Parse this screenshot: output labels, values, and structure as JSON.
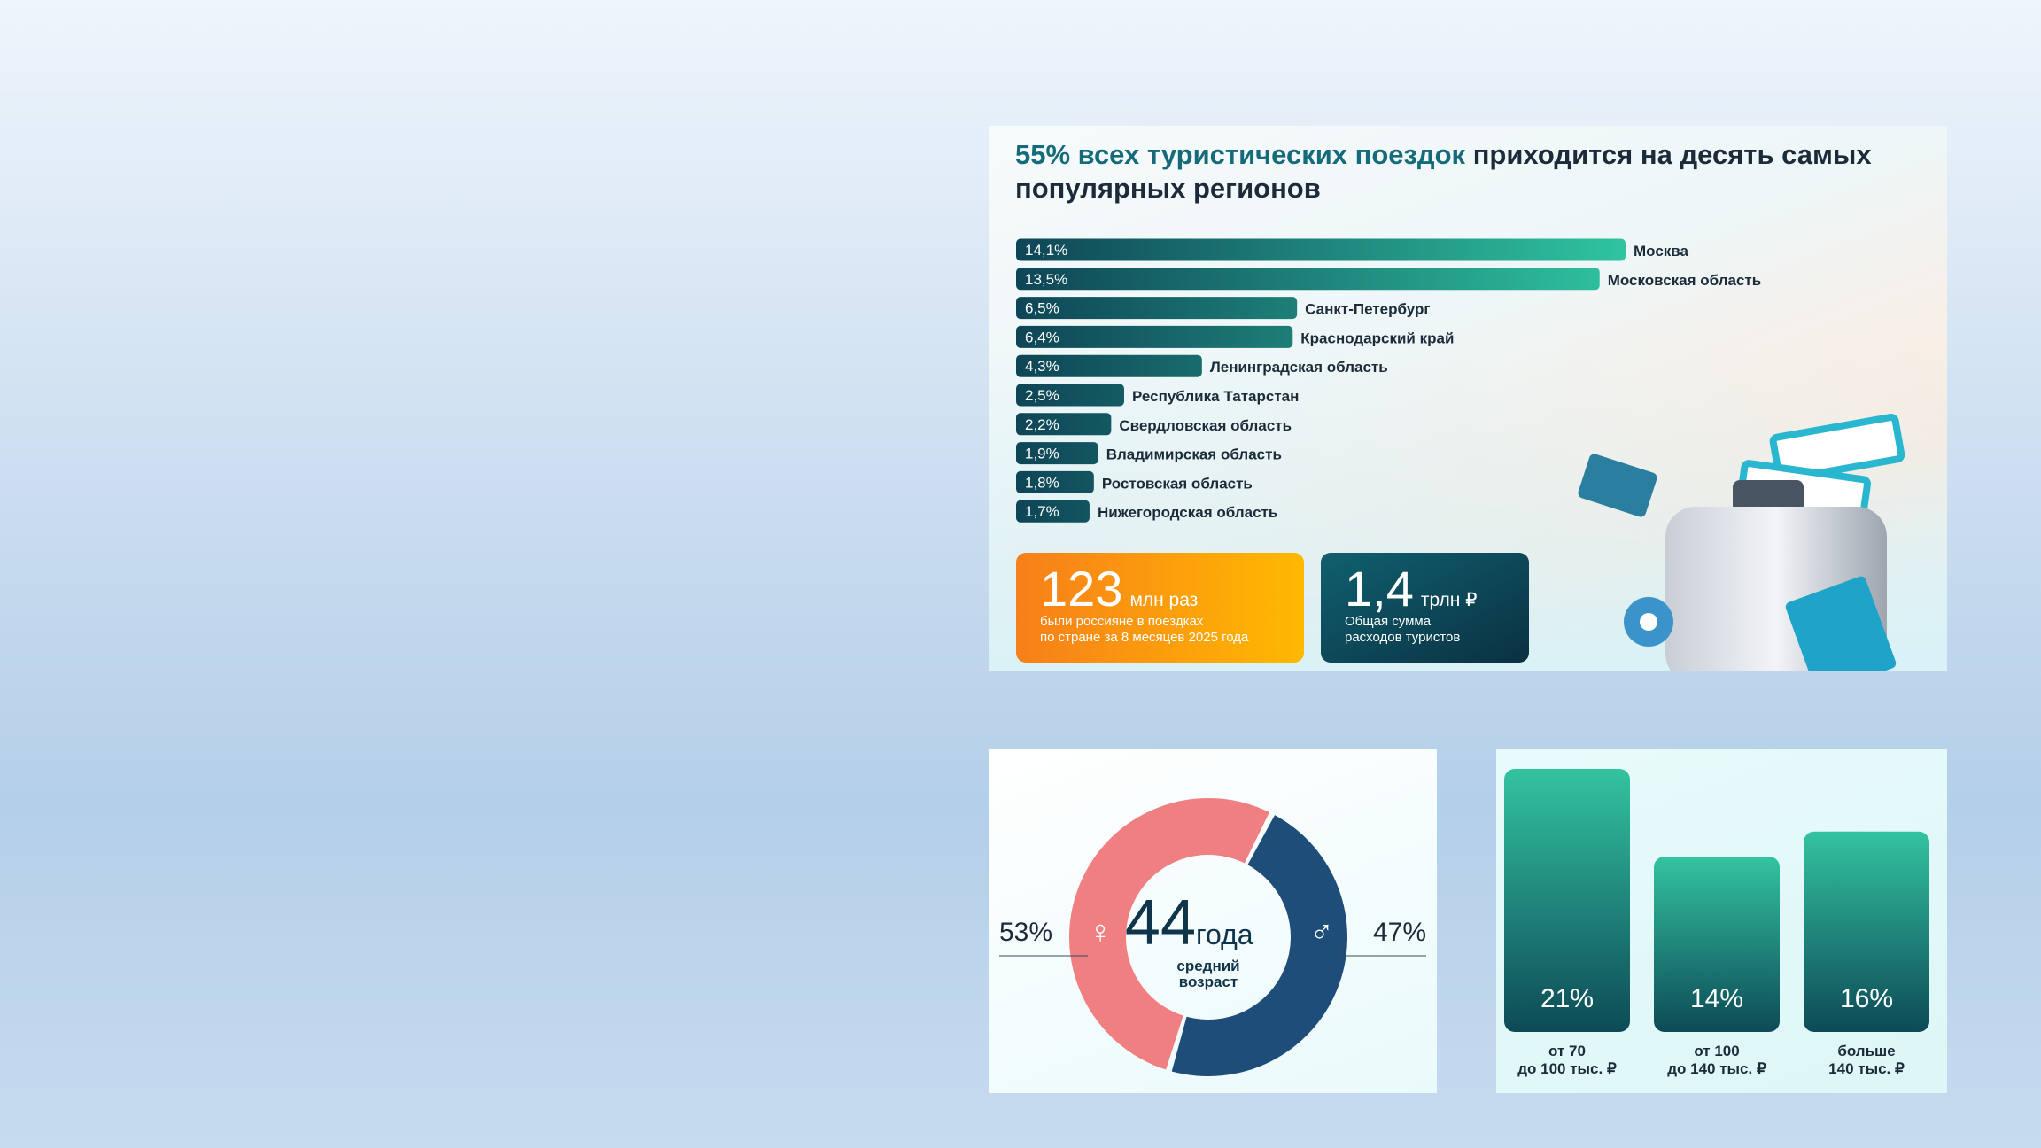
{
  "chart_data": [
    {
      "type": "bar",
      "orientation": "horizontal",
      "title_highlight": "55% всех туристических поездок",
      "title": "приходится на десять самых популярных регионов",
      "categories": [
        "Москва",
        "Московская область",
        "Санкт-Петербург",
        "Краснодарский край",
        "Ленинградская область",
        "Республика Татарстан",
        "Свердловская область",
        "Владимирская область",
        "Ростовская область",
        "Нижегородская область"
      ],
      "values": [
        14.1,
        13.5,
        6.5,
        6.4,
        4.3,
        2.5,
        2.2,
        1.9,
        1.8,
        1.7
      ],
      "value_labels": [
        "14,1%",
        "13,5%",
        "6,5%",
        "6,4%",
        "4,3%",
        "2,5%",
        "2,2%",
        "1,9%",
        "1,8%",
        "1,7%"
      ],
      "colors": [
        "#0e4556",
        "#2fc4a0"
      ]
    },
    {
      "type": "donut",
      "categories": [
        "♀",
        "♂"
      ],
      "values": [
        53,
        47
      ],
      "value_labels": [
        "53%",
        "47%"
      ],
      "colors": [
        "#f07f82",
        "#1d4d78"
      ],
      "center_value": 44,
      "center_unit": "года",
      "center_caption": [
        "средний",
        "возраст"
      ]
    },
    {
      "type": "bar",
      "categories": [
        [
          "от 70",
          "до 100 тыс. ₽"
        ],
        [
          "от 100",
          "до 140 тыс. ₽"
        ],
        [
          "больше",
          "140 тыс. ₽"
        ]
      ],
      "values": [
        21,
        14,
        16
      ],
      "value_labels": [
        "21%",
        "14%",
        "16%"
      ],
      "ylim": [
        0,
        21
      ],
      "colors": [
        "#33c3a0",
        "#0d4a56"
      ]
    }
  ],
  "stats": [
    {
      "number": "123",
      "unit": "млн раз",
      "caption": [
        "были россияне в поездках",
        "по стране за 8 месяцев 2025 года"
      ]
    },
    {
      "number": "1,4",
      "unit": "трлн ₽",
      "caption": [
        "Общая сумма",
        "расходов туристов"
      ]
    }
  ]
}
